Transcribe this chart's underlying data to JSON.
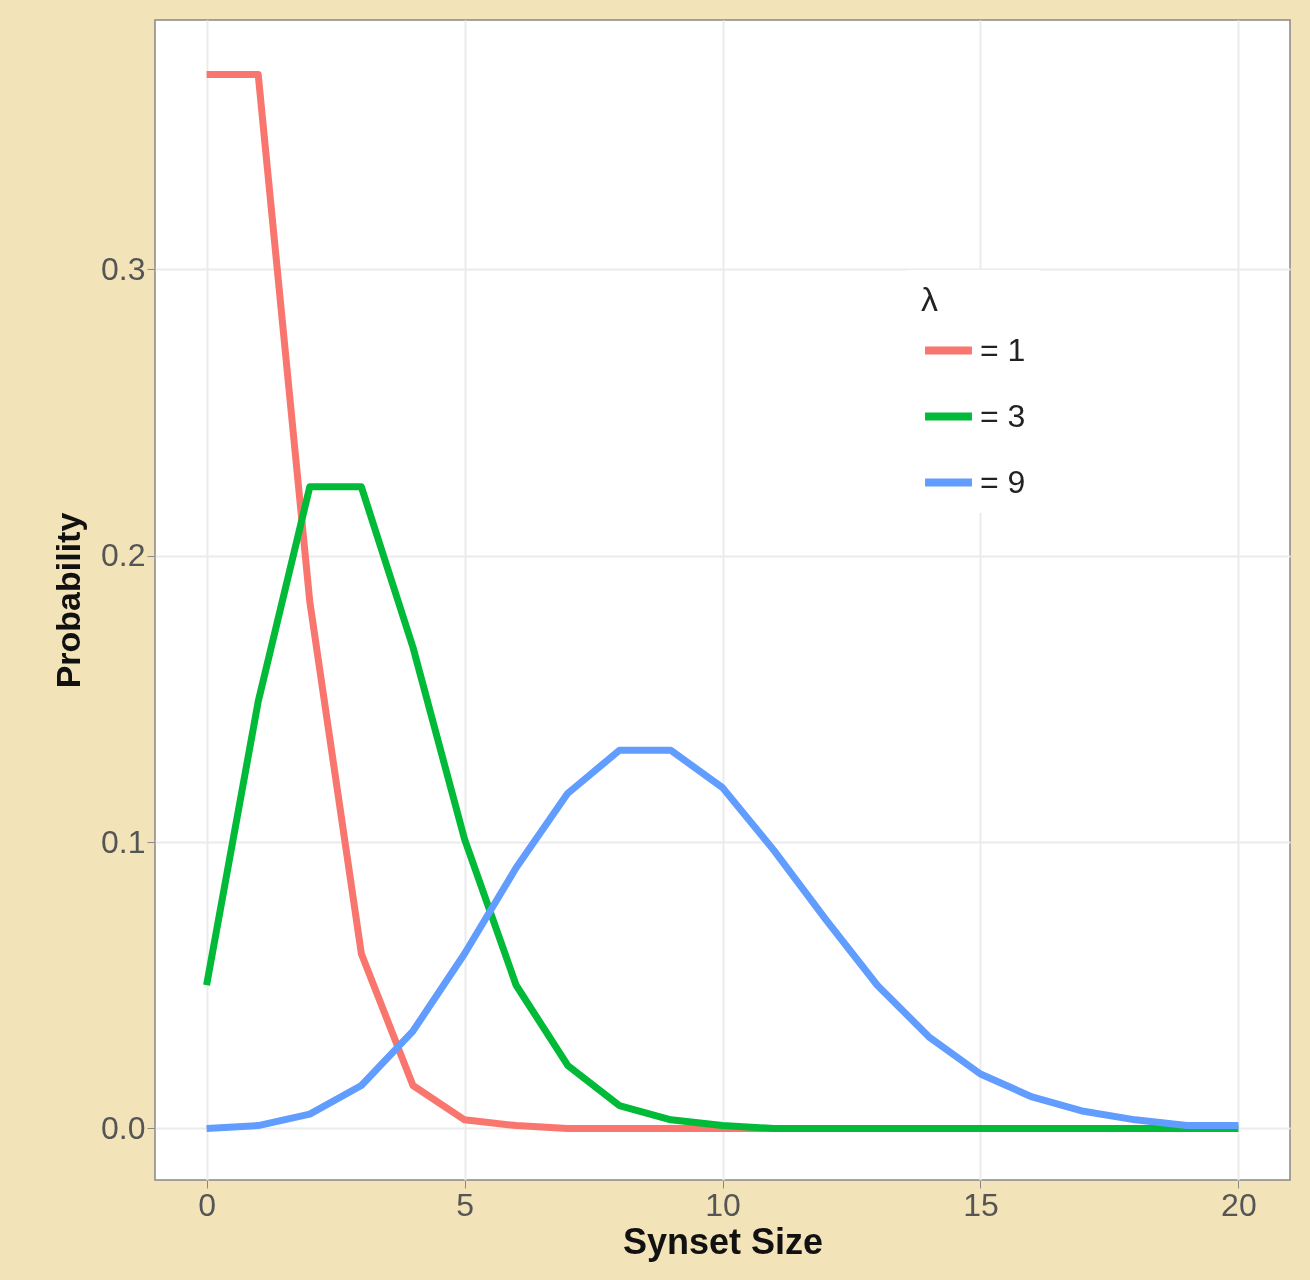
{
  "chart_data": {
    "type": "line",
    "xlabel": "Synset Size",
    "ylabel": "Probability",
    "legend_title": "λ",
    "x": [
      0,
      1,
      2,
      3,
      4,
      5,
      6,
      7,
      8,
      9,
      10,
      11,
      12,
      13,
      14,
      15,
      16,
      17,
      18,
      19,
      20
    ],
    "series": [
      {
        "name": "= 1",
        "color": "#f8766d",
        "values": [
          0.368,
          0.368,
          0.184,
          0.061,
          0.015,
          0.003,
          0.001,
          0,
          0,
          0,
          0,
          0,
          0,
          null,
          null,
          null,
          null,
          null,
          null,
          null,
          null
        ]
      },
      {
        "name": "= 3",
        "color": "#00ba38",
        "values": [
          0.05,
          0.149,
          0.224,
          0.224,
          0.168,
          0.101,
          0.05,
          0.022,
          0.008,
          0.003,
          0.001,
          0,
          0,
          0,
          0,
          0,
          0,
          0,
          0,
          0,
          0
        ]
      },
      {
        "name": "= 9",
        "color": "#619cff",
        "values": [
          0.0,
          0.001,
          0.005,
          0.015,
          0.034,
          0.061,
          0.091,
          0.117,
          0.132,
          0.132,
          0.119,
          0.097,
          0.073,
          0.05,
          0.032,
          0.019,
          0.011,
          0.006,
          0.003,
          0.001,
          0.001
        ]
      }
    ],
    "xlim": [
      -1,
      21
    ],
    "ylim": [
      -0.018,
      0.387
    ],
    "xticks": [
      0,
      5,
      10,
      15,
      20
    ],
    "yticks": [
      {
        "value": 0,
        "label": "0.0"
      },
      {
        "value": 0.1,
        "label": "0.1"
      },
      {
        "value": 0.2,
        "label": "0.2"
      },
      {
        "value": 0.3,
        "label": "0.3"
      }
    ],
    "grid": true,
    "legend": "top right",
    "marker": "none",
    "line_style": "solid"
  }
}
